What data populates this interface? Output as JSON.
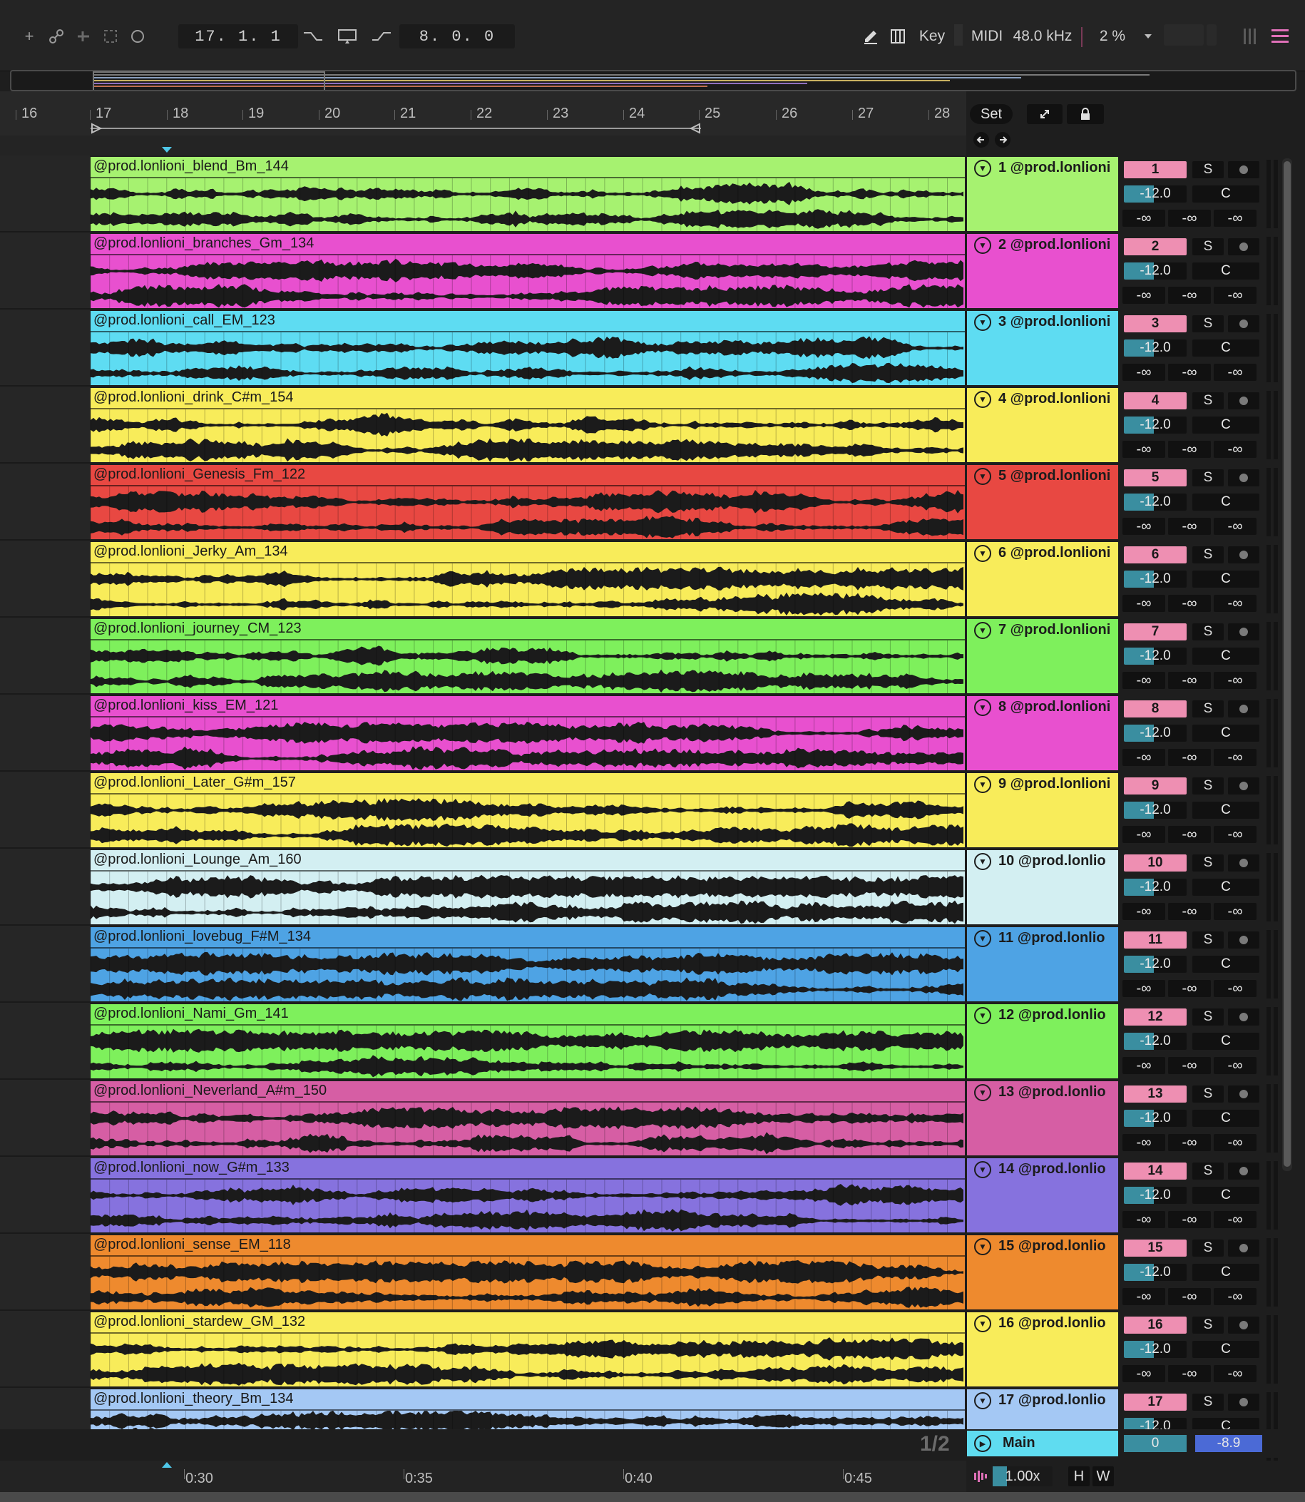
{
  "toolbar": {
    "position": "17.   1.   1",
    "loop_length": "8.   0.   0",
    "key_label": "Key",
    "midi_label": "MIDI",
    "sample_rate": "48.0 kHz",
    "cpu": "2 %"
  },
  "ruler": {
    "bars": [
      "16",
      "17",
      "18",
      "19",
      "20",
      "21",
      "22",
      "23",
      "24",
      "25",
      "26",
      "27",
      "28"
    ],
    "set_label": "Set"
  },
  "colors": {
    "lime": "#a6f270",
    "magenta": "#e850cf",
    "cyan": "#5edcf2",
    "yellow": "#f8ec5a",
    "red": "#e84842",
    "green": "#7ef05c",
    "paleblue": "#d3eff2",
    "blue": "#4ea3e4",
    "pink": "#d65ea4",
    "purple": "#8672de",
    "orange": "#ee8a2e",
    "lightblue": "#a4c8f4"
  },
  "tracks": [
    {
      "clip": "@prod.lonlioni_blend_Bm_144",
      "name": "1 @prod.lonlioni",
      "num": "1",
      "color": "#a6f270"
    },
    {
      "clip": "@prod.lonlioni_branches_Gm_134",
      "name": "2 @prod.lonlioni",
      "num": "2",
      "color": "#e850cf"
    },
    {
      "clip": "@prod.lonlioni_call_EM_123",
      "name": "3 @prod.lonlioni",
      "num": "3",
      "color": "#5edcf2"
    },
    {
      "clip": "@prod.lonlioni_drink_C#m_154",
      "name": "4 @prod.lonlioni",
      "num": "4",
      "color": "#f8ec5a"
    },
    {
      "clip": "@prod.lonlioni_Genesis_Fm_122",
      "name": "5 @prod.lonlioni",
      "num": "5",
      "color": "#e84842"
    },
    {
      "clip": "@prod.lonlioni_Jerky_Am_134",
      "name": "6 @prod.lonlioni",
      "num": "6",
      "color": "#f8ec5a"
    },
    {
      "clip": "@prod.lonlioni_journey_CM_123",
      "name": "7 @prod.lonlioni",
      "num": "7",
      "color": "#7ef05c"
    },
    {
      "clip": "@prod.lonlioni_kiss_EM_121",
      "name": "8 @prod.lonlioni",
      "num": "8",
      "color": "#e850cf"
    },
    {
      "clip": "@prod.lonlioni_Later_G#m_157",
      "name": "9 @prod.lonlioni",
      "num": "9",
      "color": "#f8ec5a"
    },
    {
      "clip": "@prod.lonlioni_Lounge_Am_160",
      "name": "10 @prod.lonlio",
      "num": "10",
      "color": "#d3eff2"
    },
    {
      "clip": "@prod.lonlioni_lovebug_F#M_134",
      "name": "11 @prod.lonlio",
      "num": "11",
      "color": "#4ea3e4"
    },
    {
      "clip": "@prod.lonlioni_Nami_Gm_141",
      "name": "12 @prod.lonlio",
      "num": "12",
      "color": "#7ef05c"
    },
    {
      "clip": "@prod.lonlioni_Neverland_A#m_150",
      "name": "13 @prod.lonlio",
      "num": "13",
      "color": "#d65ea4"
    },
    {
      "clip": "@prod.lonlioni_now_G#m_133",
      "name": "14 @prod.lonlio",
      "num": "14",
      "color": "#8672de"
    },
    {
      "clip": "@prod.lonlioni_sense_EM_118",
      "name": "15 @prod.lonlio",
      "num": "15",
      "color": "#ee8a2e"
    },
    {
      "clip": "@prod.lonlioni_stardew_GM_132",
      "name": "16 @prod.lonlio",
      "num": "16",
      "color": "#f8ec5a"
    },
    {
      "clip": "@prod.lonlioni_theory_Bm_134",
      "name": "17 @prod.lonlio",
      "num": "17",
      "color": "#a4c8f4"
    }
  ],
  "mixer_defaults": {
    "solo": "S",
    "volume": "-12.0",
    "pan": "C",
    "send": "-∞"
  },
  "main": {
    "page": "1/2",
    "name": "Main",
    "volume": "0",
    "level": "-8.9"
  },
  "timeline": {
    "times": [
      "0:30",
      "0:35",
      "0:40",
      "0:45"
    ],
    "zoom": "1.00x",
    "h_label": "H",
    "w_label": "W"
  }
}
